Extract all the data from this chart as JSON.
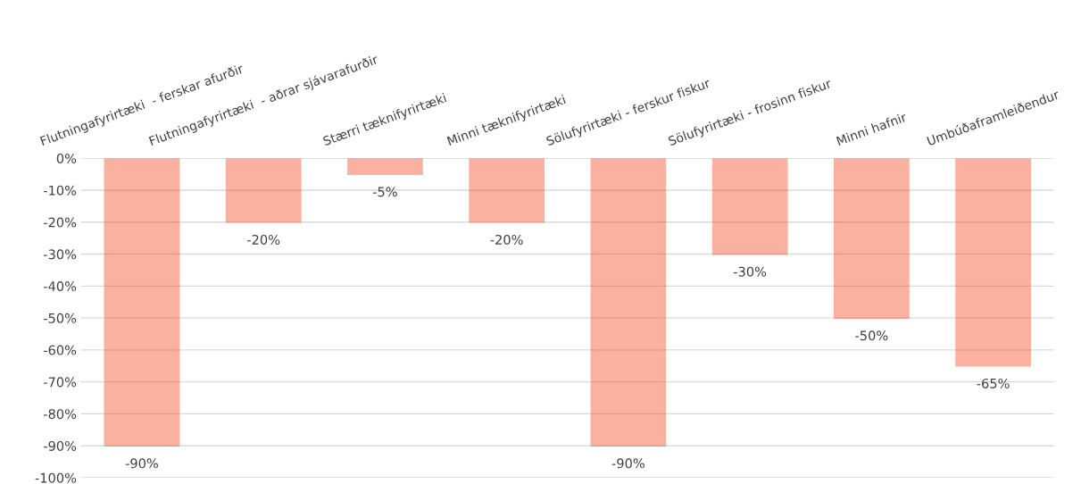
{
  "chart_data": {
    "type": "bar",
    "categories": [
      "Flutningafyrirtæki  - ferskar afurðir",
      "Flutningafyrirtæki  - aðrar sjávarafurðir",
      "Stærri tæknifyrirtæki",
      "Minni tæknifyrirtæki",
      "Sölufyrirtæki - ferskur fiskur",
      "Sölufyrirtæki - frosinn fiskur",
      "Minni hafnir",
      "Umbúðaframleiðendur"
    ],
    "values": [
      -90,
      -20,
      -5,
      -20,
      -90,
      -30,
      -50,
      -65
    ],
    "value_labels": [
      "-90%",
      "-20%",
      "-5%",
      "-20%",
      "-90%",
      "-30%",
      "-50%",
      "-65%"
    ],
    "color": "#f4532c",
    "ylim": [
      -100,
      0
    ],
    "yticks": [
      {
        "value": 0,
        "label": "0%"
      },
      {
        "value": -10,
        "label": "-10%"
      },
      {
        "value": -20,
        "label": "-20%"
      },
      {
        "value": -30,
        "label": "-30%"
      },
      {
        "value": -40,
        "label": "-40%"
      },
      {
        "value": -50,
        "label": "-50%"
      },
      {
        "value": -60,
        "label": "-60%"
      },
      {
        "value": -70,
        "label": "-70%"
      },
      {
        "value": -80,
        "label": "-80%"
      },
      {
        "value": -90,
        "label": "-90%"
      },
      {
        "value": -100,
        "label": "-100%"
      }
    ],
    "grid": "y",
    "legend": false
  }
}
